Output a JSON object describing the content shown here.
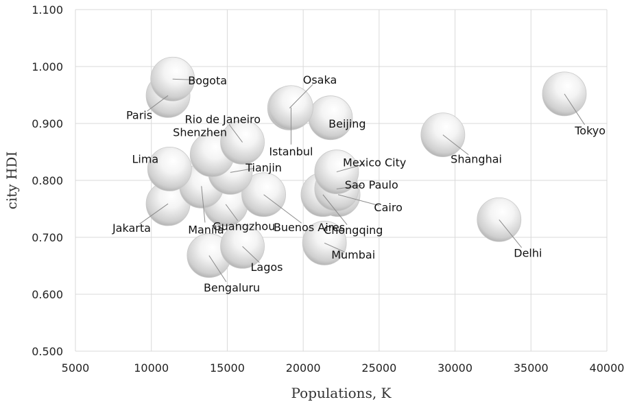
{
  "chart_data": {
    "type": "scatter",
    "subtype": "bubble",
    "title": "",
    "xlabel": "Populations, K",
    "ylabel": "city HDI",
    "xlim": [
      5000,
      40000
    ],
    "ylim": [
      0.5,
      1.1
    ],
    "x_ticks": [
      "5000",
      "10000",
      "15000",
      "20000",
      "25000",
      "30000",
      "35000",
      "40000"
    ],
    "y_ticks": [
      "0.500",
      "0.600",
      "0.700",
      "0.800",
      "0.900",
      "1.000",
      "1.100"
    ],
    "grid": true,
    "legend": "none",
    "bubble_color": "#e6e6e6",
    "points": [
      {
        "name": "Tokyo",
        "x": 37200,
        "y": 0.952,
        "lx": 38900,
        "ly": 0.888
      },
      {
        "name": "Delhi",
        "x": 32900,
        "y": 0.731,
        "lx": 34800,
        "ly": 0.673
      },
      {
        "name": "Shanghai",
        "x": 29200,
        "y": 0.88,
        "lx": 31400,
        "ly": 0.838
      },
      {
        "name": "Mexico City",
        "x": 22200,
        "y": 0.815,
        "lx": 24700,
        "ly": 0.832
      },
      {
        "name": "Sao Paulo",
        "x": 22200,
        "y": 0.785,
        "lx": 24500,
        "ly": 0.793
      },
      {
        "name": "Cairo",
        "x": 22300,
        "y": 0.775,
        "lx": 25600,
        "ly": 0.753
      },
      {
        "name": "Chongqing",
        "x": 21300,
        "y": 0.775,
        "lx": 23300,
        "ly": 0.713
      },
      {
        "name": "Mumbai",
        "x": 21400,
        "y": 0.69,
        "lx": 23300,
        "ly": 0.67
      },
      {
        "name": "Beijing",
        "x": 21800,
        "y": 0.91,
        "lx": 22900,
        "ly": 0.9
      },
      {
        "name": "Osaka",
        "x": 19100,
        "y": 0.927,
        "lx": 21100,
        "ly": 0.977
      },
      {
        "name": "Istanbul",
        "x": 19200,
        "y": 0.928,
        "lx": 19200,
        "ly": 0.851
      },
      {
        "name": "Bogota",
        "x": 11400,
        "y": 0.978,
        "lx": 13700,
        "ly": 0.976
      },
      {
        "name": "Paris",
        "x": 11100,
        "y": 0.949,
        "lx": 9200,
        "ly": 0.915
      },
      {
        "name": "Rio de Janeiro",
        "x": 16000,
        "y": 0.867,
        "lx": 14700,
        "ly": 0.908
      },
      {
        "name": "Shenzhen",
        "x": 14000,
        "y": 0.845,
        "lx": 13200,
        "ly": 0.885
      },
      {
        "name": "Lima",
        "x": 11200,
        "y": 0.82,
        "lx": 9600,
        "ly": 0.838
      },
      {
        "name": "Tianjin",
        "x": 15200,
        "y": 0.814,
        "lx": 17400,
        "ly": 0.823
      },
      {
        "name": "Buenos Aires",
        "x": 17400,
        "y": 0.775,
        "lx": 20400,
        "ly": 0.718
      },
      {
        "name": "Guangzhou",
        "x": 14900,
        "y": 0.758,
        "lx": 16100,
        "ly": 0.72
      },
      {
        "name": "Manila",
        "x": 13300,
        "y": 0.79,
        "lx": 13600,
        "ly": 0.714
      },
      {
        "name": "Jakarta",
        "x": 11100,
        "y": 0.759,
        "lx": 8700,
        "ly": 0.717
      },
      {
        "name": "Lagos",
        "x": 16000,
        "y": 0.684,
        "lx": 17600,
        "ly": 0.648
      },
      {
        "name": "Bengaluru",
        "x": 13800,
        "y": 0.668,
        "lx": 15300,
        "ly": 0.612
      }
    ]
  }
}
